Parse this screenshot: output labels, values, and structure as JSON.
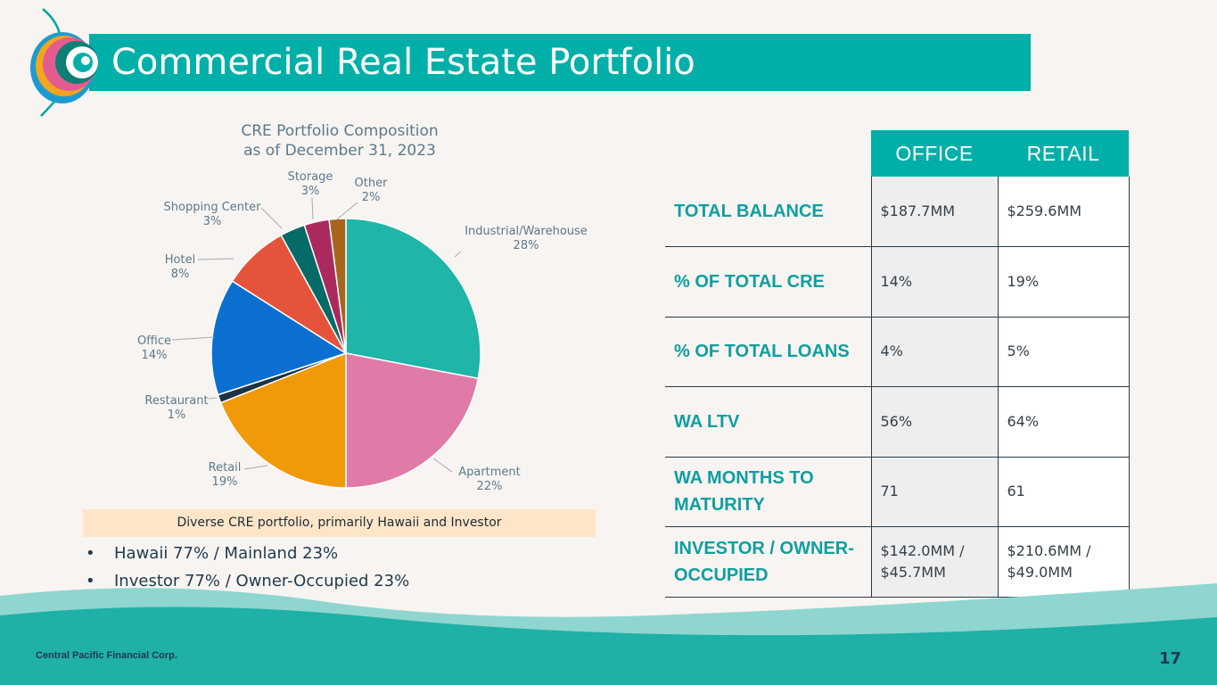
{
  "header": {
    "title": "Commercial Real Estate Portfolio"
  },
  "chart_data": {
    "type": "pie",
    "title": "CRE Portfolio Composition as of December 31, 2023",
    "title_lines": [
      "CRE Portfolio Composition",
      "as of December 31, 2023"
    ],
    "categories": [
      "Industrial/Warehouse",
      "Apartment",
      "Retail",
      "Restaurant",
      "Office",
      "Hotel",
      "Shopping Center",
      "Storage",
      "Other"
    ],
    "values": [
      28,
      22,
      19,
      1,
      14,
      8,
      3,
      3,
      2
    ],
    "labels": [
      "28%",
      "22%",
      "19%",
      "1%",
      "14%",
      "8%",
      "3%",
      "3%",
      "2%"
    ],
    "colors": [
      "#1fb5a8",
      "#e07aa9",
      "#f09a0a",
      "#1d3344",
      "#0a6fcf",
      "#e5533b",
      "#056b67",
      "#ab2a5e",
      "#a6661c"
    ],
    "unit": "%"
  },
  "banner": {
    "text": "Diverse CRE portfolio, primarily Hawaii and Investor"
  },
  "bullets": [
    "Hawaii 77% / Mainland 23%",
    "Investor 77% / Owner-Occupied 23%"
  ],
  "table": {
    "columns": [
      "OFFICE",
      "RETAIL"
    ],
    "rows": [
      {
        "label": "TOTAL BALANCE",
        "office": "$187.7MM",
        "retail": "$259.6MM"
      },
      {
        "label": "% OF TOTAL CRE",
        "office": "14%",
        "retail": "19%"
      },
      {
        "label": "% OF TOTAL LOANS",
        "office": "4%",
        "retail": "5%"
      },
      {
        "label": "WA LTV",
        "office": "56%",
        "retail": "64%"
      },
      {
        "label": "WA MONTHS TO MATURITY",
        "office": "71",
        "retail": "61"
      },
      {
        "label": "INVESTOR / OWNER-OCCUPIED",
        "office": "$142.0MM / $45.7MM",
        "retail": "$210.6MM / $49.0MM"
      }
    ]
  },
  "footer": {
    "company": "Central Pacific Financial Corp.",
    "page": "17"
  }
}
